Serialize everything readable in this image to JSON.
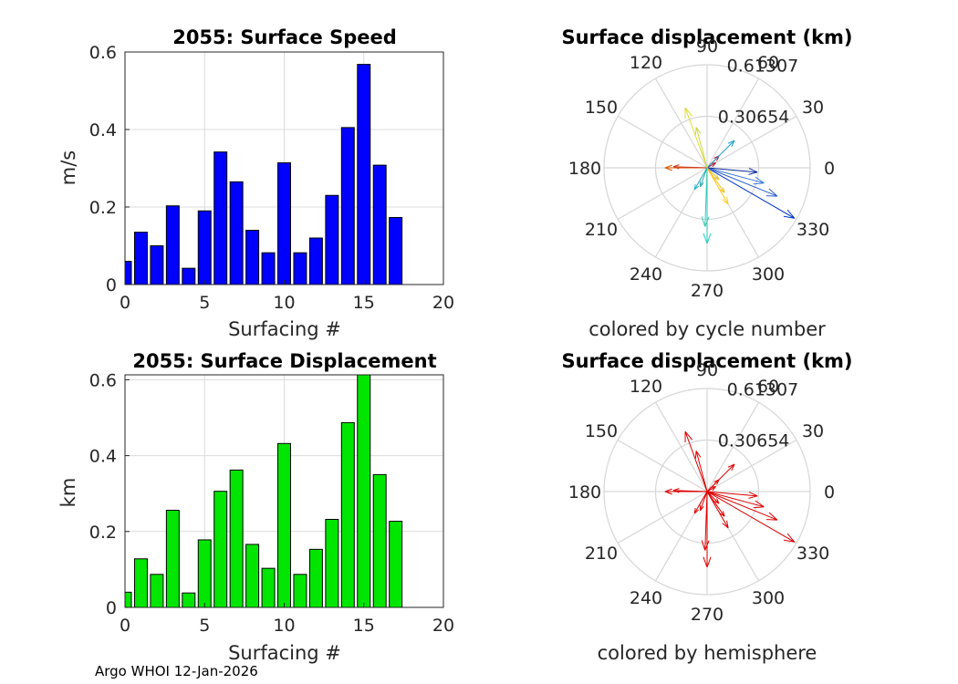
{
  "footer": "Argo WHOI 12-Jan-2026",
  "chart_data": [
    {
      "type": "bar",
      "title": "2055: Surface Speed",
      "xlabel": "Surfacing #",
      "ylabel": "m/s",
      "color": "#0000ff",
      "x": [
        0,
        1,
        2,
        3,
        4,
        5,
        6,
        7,
        8,
        9,
        10,
        11,
        12,
        13,
        14,
        15,
        16,
        17
      ],
      "values": [
        0.06,
        0.135,
        0.1,
        0.203,
        0.042,
        0.19,
        0.342,
        0.265,
        0.14,
        0.082,
        0.314,
        0.082,
        0.12,
        0.23,
        0.405,
        0.568,
        0.308,
        0.173
      ],
      "xlim": [
        0,
        20
      ],
      "ylim": [
        0,
        0.6
      ],
      "xticks": [
        "0",
        "5",
        "10",
        "15",
        "20"
      ],
      "yticks": [
        "0",
        "0.2",
        "0.4",
        "0.6"
      ]
    },
    {
      "type": "polar",
      "title": "Surface displacement (km)",
      "caption": "colored by cycle number",
      "rlim": 0.61307,
      "rlabels": [
        "0.30654",
        "0.61307"
      ],
      "angle_labels": [
        "0",
        "30",
        "60",
        "90",
        "120",
        "150",
        "180",
        "210",
        "240",
        "270",
        "300",
        "330"
      ],
      "vectors": [
        {
          "angle": 330,
          "r": 0.6,
          "color": "#0033cc"
        },
        {
          "angle": 338,
          "r": 0.45,
          "color": "#2a5fd0"
        },
        {
          "angle": 345,
          "r": 0.35,
          "color": "#3a78d8"
        },
        {
          "angle": 355,
          "r": 0.3,
          "color": "#0a2a9a"
        },
        {
          "angle": 180,
          "r": 0.25,
          "color": "#e05a00"
        },
        {
          "angle": 178,
          "r": 0.2,
          "color": "#c83a20"
        },
        {
          "angle": 45,
          "r": 0.1,
          "color": "#b01030"
        },
        {
          "angle": 30,
          "r": 0.06,
          "color": "#b02030"
        },
        {
          "angle": 45,
          "r": 0.23,
          "color": "#1fa0d0"
        },
        {
          "angle": 110,
          "r": 0.38,
          "color": "#dddd30"
        },
        {
          "angle": 105,
          "r": 0.25,
          "color": "#c8d840"
        },
        {
          "angle": 300,
          "r": 0.25,
          "color": "#ffd21a"
        },
        {
          "angle": 305,
          "r": 0.18,
          "color": "#f0c020"
        },
        {
          "angle": 270,
          "r": 0.45,
          "color": "#22d0c8"
        },
        {
          "angle": 268,
          "r": 0.35,
          "color": "#40c8b0"
        },
        {
          "angle": 240,
          "r": 0.15,
          "color": "#20b8c8"
        },
        {
          "angle": 250,
          "r": 0.12,
          "color": "#30a8b0"
        },
        {
          "angle": 315,
          "r": 0.1,
          "color": "#e0c030"
        }
      ]
    },
    {
      "type": "bar",
      "title": "2055: Surface Displacement",
      "xlabel": "Surfacing #",
      "ylabel": "km",
      "color": "#00e600",
      "x": [
        0,
        1,
        2,
        3,
        4,
        5,
        6,
        7,
        8,
        9,
        10,
        11,
        12,
        13,
        14,
        15,
        16,
        17
      ],
      "values": [
        0.04,
        0.128,
        0.087,
        0.256,
        0.038,
        0.178,
        0.306,
        0.362,
        0.166,
        0.103,
        0.432,
        0.087,
        0.153,
        0.232,
        0.487,
        0.613,
        0.35,
        0.227
      ],
      "xlim": [
        0,
        20
      ],
      "ylim": [
        0,
        0.613
      ],
      "xticks": [
        "0",
        "5",
        "10",
        "15",
        "20"
      ],
      "yticks": [
        "0",
        "0.2",
        "0.4",
        "0.6"
      ]
    },
    {
      "type": "polar",
      "title": "Surface displacement (km)",
      "caption": "colored by hemisphere",
      "rlim": 0.61307,
      "rlabels": [
        "0.30654",
        "0.61307"
      ],
      "angle_labels": [
        "0",
        "30",
        "60",
        "90",
        "120",
        "150",
        "180",
        "210",
        "240",
        "270",
        "300",
        "330"
      ],
      "vectors": [
        {
          "angle": 330,
          "r": 0.6,
          "color": "#dd0000"
        },
        {
          "angle": 338,
          "r": 0.45,
          "color": "#dd0000"
        },
        {
          "angle": 345,
          "r": 0.35,
          "color": "#dd0000"
        },
        {
          "angle": 355,
          "r": 0.3,
          "color": "#dd0000"
        },
        {
          "angle": 180,
          "r": 0.25,
          "color": "#dd0000"
        },
        {
          "angle": 178,
          "r": 0.2,
          "color": "#dd0000"
        },
        {
          "angle": 45,
          "r": 0.1,
          "color": "#dd0000"
        },
        {
          "angle": 30,
          "r": 0.06,
          "color": "#dd0000"
        },
        {
          "angle": 45,
          "r": 0.23,
          "color": "#dd0000"
        },
        {
          "angle": 110,
          "r": 0.38,
          "color": "#dd0000"
        },
        {
          "angle": 105,
          "r": 0.25,
          "color": "#dd0000"
        },
        {
          "angle": 300,
          "r": 0.25,
          "color": "#dd0000"
        },
        {
          "angle": 305,
          "r": 0.18,
          "color": "#dd0000"
        },
        {
          "angle": 270,
          "r": 0.45,
          "color": "#dd0000"
        },
        {
          "angle": 268,
          "r": 0.35,
          "color": "#dd0000"
        },
        {
          "angle": 240,
          "r": 0.15,
          "color": "#dd0000"
        },
        {
          "angle": 250,
          "r": 0.12,
          "color": "#dd0000"
        },
        {
          "angle": 315,
          "r": 0.1,
          "color": "#dd0000"
        }
      ]
    }
  ]
}
